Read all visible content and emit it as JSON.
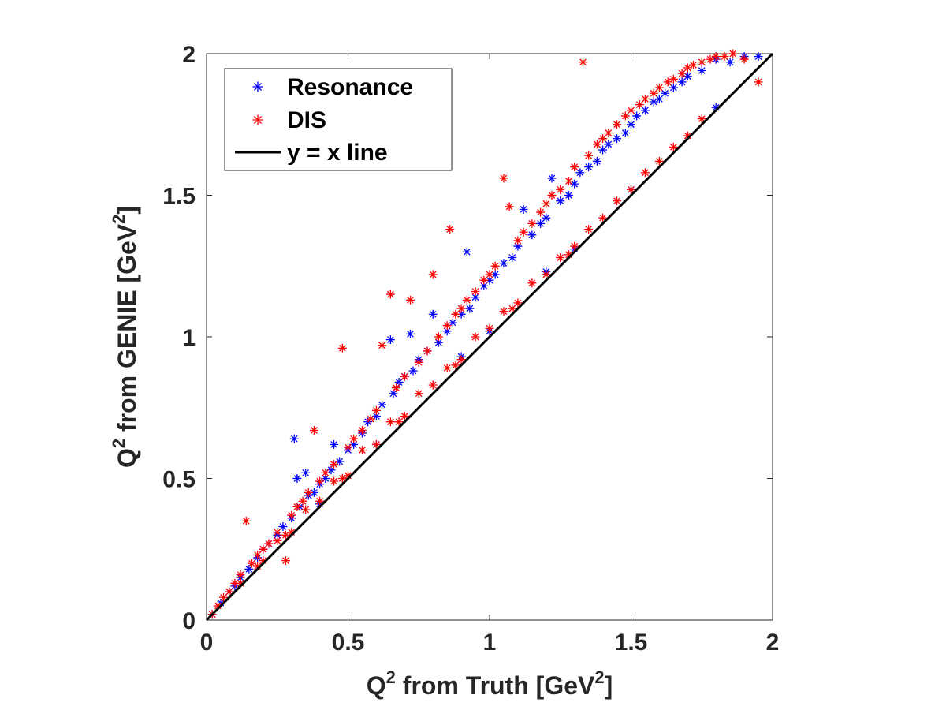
{
  "chart_data": {
    "type": "scatter",
    "xlabel": {
      "prefix": "Q",
      "sup": "2",
      "middle": " from Truth [GeV",
      "sup2": "2",
      "suffix": "]"
    },
    "ylabel": {
      "prefix": "Q",
      "sup": "2",
      "middle": " from GENIE [GeV",
      "sup2": "2",
      "suffix": "]"
    },
    "xlim": [
      0,
      2
    ],
    "ylim": [
      0,
      2
    ],
    "xticks": [
      0,
      0.5,
      1,
      1.5,
      2
    ],
    "yticks": [
      0,
      0.5,
      1,
      1.5,
      2
    ],
    "xtick_labels": [
      "0",
      "0.5",
      "1",
      "1.5",
      "2"
    ],
    "ytick_labels": [
      "0",
      "0.5",
      "1",
      "1.5",
      "2"
    ],
    "grid": false,
    "legend_position": "top-left",
    "series": [
      {
        "name": "Resonance",
        "marker": "asterisk",
        "color": "#0000ff",
        "points": [
          [
            0.02,
            0.02
          ],
          [
            0.05,
            0.06
          ],
          [
            0.08,
            0.1
          ],
          [
            0.1,
            0.12
          ],
          [
            0.12,
            0.15
          ],
          [
            0.15,
            0.18
          ],
          [
            0.18,
            0.22
          ],
          [
            0.2,
            0.25
          ],
          [
            0.22,
            0.27
          ],
          [
            0.25,
            0.3
          ],
          [
            0.27,
            0.33
          ],
          [
            0.3,
            0.36
          ],
          [
            0.31,
            0.64
          ],
          [
            0.32,
            0.5
          ],
          [
            0.33,
            0.4
          ],
          [
            0.35,
            0.52
          ],
          [
            0.36,
            0.44
          ],
          [
            0.38,
            0.45
          ],
          [
            0.4,
            0.48
          ],
          [
            0.42,
            0.5
          ],
          [
            0.44,
            0.53
          ],
          [
            0.45,
            0.62
          ],
          [
            0.47,
            0.56
          ],
          [
            0.5,
            0.6
          ],
          [
            0.52,
            0.62
          ],
          [
            0.55,
            0.66
          ],
          [
            0.57,
            0.7
          ],
          [
            0.6,
            0.72
          ],
          [
            0.62,
            0.76
          ],
          [
            0.65,
            0.99
          ],
          [
            0.66,
            0.8
          ],
          [
            0.68,
            0.84
          ],
          [
            0.7,
            0.86
          ],
          [
            0.72,
            1.01
          ],
          [
            0.73,
            0.88
          ],
          [
            0.75,
            0.92
          ],
          [
            0.78,
            0.95
          ],
          [
            0.8,
            1.08
          ],
          [
            0.82,
            0.98
          ],
          [
            0.85,
            1.02
          ],
          [
            0.87,
            1.05
          ],
          [
            0.9,
            1.08
          ],
          [
            0.92,
            1.3
          ],
          [
            0.93,
            1.1
          ],
          [
            0.95,
            1.14
          ],
          [
            0.98,
            1.18
          ],
          [
            1.0,
            1.2
          ],
          [
            1.02,
            1.22
          ],
          [
            1.05,
            1.26
          ],
          [
            1.08,
            1.28
          ],
          [
            1.1,
            1.32
          ],
          [
            1.12,
            1.45
          ],
          [
            1.15,
            1.36
          ],
          [
            1.18,
            1.4
          ],
          [
            1.2,
            1.42
          ],
          [
            1.22,
            1.56
          ],
          [
            1.25,
            1.48
          ],
          [
            1.28,
            1.5
          ],
          [
            1.3,
            1.54
          ],
          [
            1.32,
            1.58
          ],
          [
            1.35,
            1.6
          ],
          [
            1.38,
            1.62
          ],
          [
            1.4,
            1.66
          ],
          [
            1.42,
            1.68
          ],
          [
            1.45,
            1.7
          ],
          [
            1.48,
            1.72
          ],
          [
            1.5,
            1.75
          ],
          [
            1.52,
            1.78
          ],
          [
            1.55,
            1.8
          ],
          [
            1.58,
            1.83
          ],
          [
            1.6,
            1.84
          ],
          [
            1.62,
            1.86
          ],
          [
            1.65,
            1.88
          ],
          [
            1.68,
            1.9
          ],
          [
            1.7,
            1.92
          ],
          [
            1.75,
            1.94
          ],
          [
            1.8,
            1.98
          ],
          [
            1.85,
            1.97
          ],
          [
            1.9,
            1.99
          ],
          [
            1.95,
            1.99
          ],
          [
            0.6,
            0.62
          ],
          [
            0.9,
            0.93
          ],
          [
            1.2,
            1.23
          ],
          [
            1.5,
            1.52
          ],
          [
            1.8,
            1.81
          ],
          [
            0.4,
            0.41
          ],
          [
            1.0,
            1.02
          ],
          [
            1.3,
            1.31
          ]
        ]
      },
      {
        "name": "DIS",
        "marker": "asterisk",
        "color": "#ff0000",
        "points": [
          [
            0.02,
            0.02
          ],
          [
            0.04,
            0.05
          ],
          [
            0.06,
            0.08
          ],
          [
            0.08,
            0.1
          ],
          [
            0.1,
            0.13
          ],
          [
            0.12,
            0.16
          ],
          [
            0.14,
            0.35
          ],
          [
            0.16,
            0.2
          ],
          [
            0.18,
            0.23
          ],
          [
            0.2,
            0.25
          ],
          [
            0.22,
            0.27
          ],
          [
            0.25,
            0.31
          ],
          [
            0.28,
            0.21
          ],
          [
            0.3,
            0.37
          ],
          [
            0.32,
            0.4
          ],
          [
            0.34,
            0.42
          ],
          [
            0.36,
            0.45
          ],
          [
            0.38,
            0.67
          ],
          [
            0.4,
            0.49
          ],
          [
            0.42,
            0.52
          ],
          [
            0.45,
            0.55
          ],
          [
            0.48,
            0.96
          ],
          [
            0.5,
            0.61
          ],
          [
            0.52,
            0.64
          ],
          [
            0.55,
            0.67
          ],
          [
            0.58,
            0.71
          ],
          [
            0.6,
            0.74
          ],
          [
            0.62,
            0.97
          ],
          [
            0.65,
            1.15
          ],
          [
            0.67,
            0.82
          ],
          [
            0.7,
            0.86
          ],
          [
            0.72,
            1.13
          ],
          [
            0.75,
            0.91
          ],
          [
            0.78,
            0.95
          ],
          [
            0.8,
            1.22
          ],
          [
            0.82,
            1.0
          ],
          [
            0.85,
            1.04
          ],
          [
            0.86,
            1.38
          ],
          [
            0.88,
            1.08
          ],
          [
            0.9,
            1.1
          ],
          [
            0.92,
            1.13
          ],
          [
            0.95,
            1.16
          ],
          [
            0.98,
            1.2
          ],
          [
            1.0,
            1.22
          ],
          [
            1.02,
            1.25
          ],
          [
            1.05,
            1.56
          ],
          [
            1.07,
            1.46
          ],
          [
            1.1,
            1.34
          ],
          [
            1.12,
            1.37
          ],
          [
            1.15,
            1.4
          ],
          [
            1.18,
            1.44
          ],
          [
            1.2,
            1.47
          ],
          [
            1.22,
            1.5
          ],
          [
            1.25,
            1.52
          ],
          [
            1.28,
            1.55
          ],
          [
            1.3,
            1.6
          ],
          [
            1.33,
            1.97
          ],
          [
            1.35,
            1.64
          ],
          [
            1.38,
            1.68
          ],
          [
            1.4,
            1.7
          ],
          [
            1.42,
            1.72
          ],
          [
            1.45,
            1.75
          ],
          [
            1.48,
            1.78
          ],
          [
            1.5,
            1.8
          ],
          [
            1.53,
            1.82
          ],
          [
            1.55,
            1.84
          ],
          [
            1.58,
            1.86
          ],
          [
            1.6,
            1.88
          ],
          [
            1.63,
            1.9
          ],
          [
            1.65,
            1.91
          ],
          [
            1.68,
            1.93
          ],
          [
            1.7,
            1.95
          ],
          [
            1.72,
            1.96
          ],
          [
            1.75,
            1.97
          ],
          [
            1.78,
            1.98
          ],
          [
            1.8,
            1.99
          ],
          [
            1.83,
            1.99
          ],
          [
            1.86,
            2.0
          ],
          [
            1.9,
            1.98
          ],
          [
            1.95,
            1.9
          ],
          [
            0.3,
            0.31
          ],
          [
            0.5,
            0.51
          ],
          [
            0.7,
            0.72
          ],
          [
            0.9,
            0.92
          ],
          [
            1.1,
            1.12
          ],
          [
            1.3,
            1.32
          ],
          [
            1.5,
            1.52
          ],
          [
            1.7,
            1.71
          ],
          [
            0.2,
            0.21
          ],
          [
            0.4,
            0.42
          ],
          [
            0.6,
            0.62
          ],
          [
            0.8,
            0.83
          ],
          [
            1.0,
            1.03
          ],
          [
            1.2,
            1.22
          ],
          [
            1.4,
            1.42
          ],
          [
            1.6,
            1.62
          ],
          [
            0.35,
            0.39
          ],
          [
            0.55,
            0.6
          ],
          [
            0.75,
            0.8
          ],
          [
            0.95,
            1.0
          ],
          [
            1.15,
            1.19
          ],
          [
            1.35,
            1.38
          ],
          [
            1.55,
            1.58
          ],
          [
            1.75,
            1.77
          ],
          [
            0.25,
            0.28
          ],
          [
            0.45,
            0.49
          ],
          [
            0.65,
            0.7
          ],
          [
            0.85,
            0.89
          ],
          [
            1.05,
            1.09
          ],
          [
            1.25,
            1.28
          ],
          [
            1.45,
            1.48
          ],
          [
            1.65,
            1.67
          ],
          [
            0.12,
            0.13
          ],
          [
            0.18,
            0.19
          ],
          [
            0.28,
            0.3
          ],
          [
            0.48,
            0.5
          ],
          [
            0.68,
            0.7
          ],
          [
            0.88,
            0.9
          ],
          [
            1.08,
            1.1
          ],
          [
            1.28,
            1.29
          ]
        ]
      },
      {
        "name": "y = x line",
        "marker": "line",
        "color": "#000000",
        "points": [
          [
            0,
            0
          ],
          [
            2,
            2
          ]
        ]
      }
    ]
  }
}
